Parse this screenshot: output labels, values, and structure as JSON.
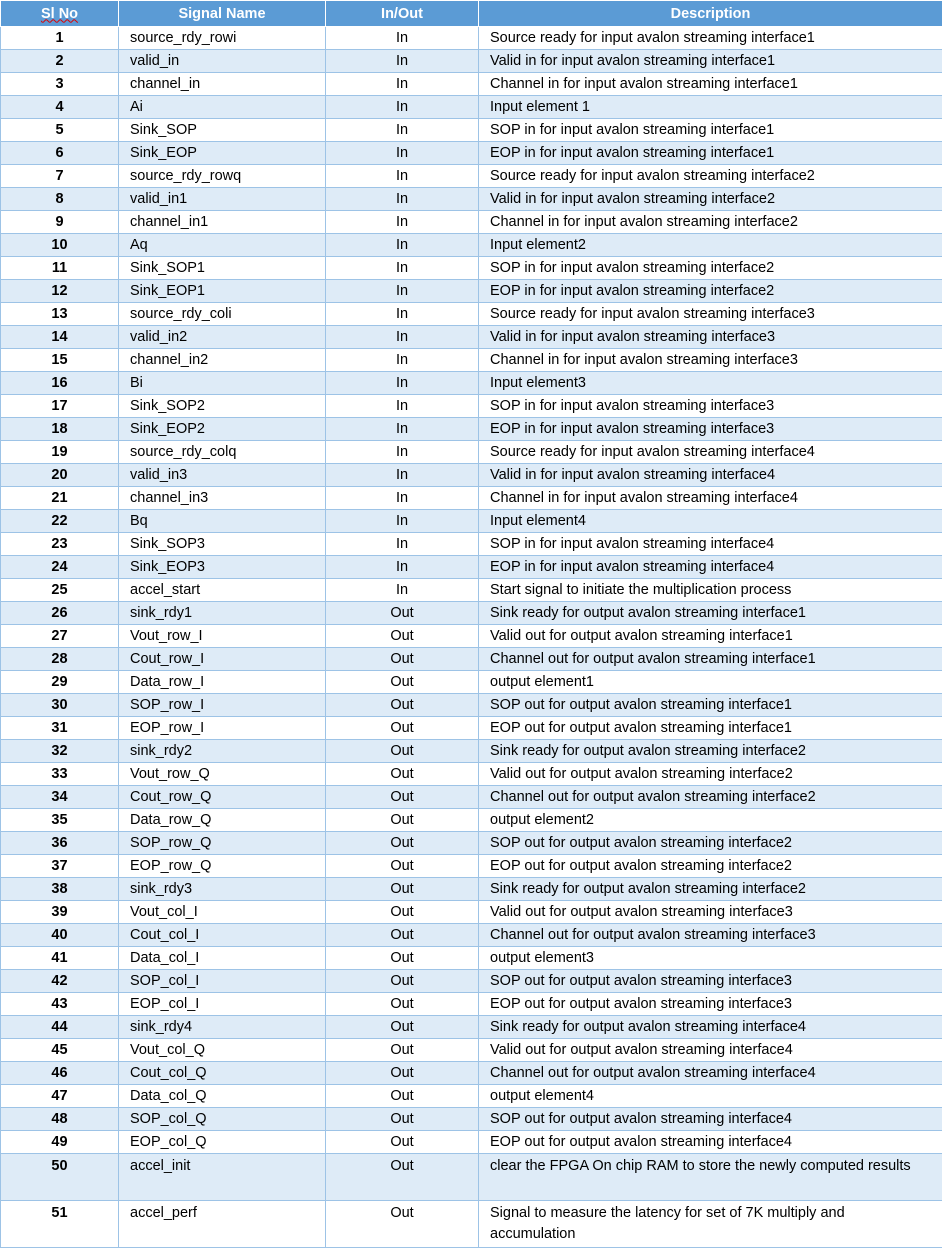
{
  "headers": {
    "sl_no": "Sl No",
    "signal_name": "Signal Name",
    "in_out": "In/Out",
    "description": "Description"
  },
  "rows": [
    {
      "sl": "1",
      "name": "source_rdy_rowi",
      "dir": "In",
      "desc": "Source ready for input avalon streaming interface1"
    },
    {
      "sl": "2",
      "name": "valid_in",
      "dir": "In",
      "desc": "Valid in for input avalon streaming interface1"
    },
    {
      "sl": "3",
      "name": "channel_in",
      "dir": "In",
      "desc": "Channel in for input avalon streaming interface1"
    },
    {
      "sl": "4",
      "name": "Ai",
      "dir": "In",
      "desc": "Input element 1"
    },
    {
      "sl": "5",
      "name": "Sink_SOP",
      "dir": "In",
      "desc": "SOP in for input avalon streaming interface1"
    },
    {
      "sl": "6",
      "name": "Sink_EOP",
      "dir": "In",
      "desc": "EOP in for input avalon streaming interface1"
    },
    {
      "sl": "7",
      "name": "source_rdy_rowq",
      "dir": "In",
      "desc": "Source ready for input avalon streaming interface2"
    },
    {
      "sl": "8",
      "name": "valid_in1",
      "dir": "In",
      "desc": "Valid in for input avalon streaming interface2"
    },
    {
      "sl": "9",
      "name": "channel_in1",
      "dir": "In",
      "desc": "Channel in for input avalon streaming interface2"
    },
    {
      "sl": "10",
      "name": "Aq",
      "dir": "In",
      "desc": "Input element2"
    },
    {
      "sl": "11",
      "name": "Sink_SOP1",
      "dir": "In",
      "desc": "SOP in for input avalon streaming interface2"
    },
    {
      "sl": "12",
      "name": "Sink_EOP1",
      "dir": "In",
      "desc": "EOP in for input avalon streaming interface2"
    },
    {
      "sl": "13",
      "name": "source_rdy_coli",
      "dir": "In",
      "desc": "Source ready for input avalon streaming interface3"
    },
    {
      "sl": "14",
      "name": "valid_in2",
      "dir": "In",
      "desc": "Valid in for input avalon streaming interface3"
    },
    {
      "sl": "15",
      "name": "channel_in2",
      "dir": "In",
      "desc": "Channel in for input avalon streaming interface3"
    },
    {
      "sl": "16",
      "name": "Bi",
      "dir": "In",
      "desc": "Input element3"
    },
    {
      "sl": "17",
      "name": "Sink_SOP2",
      "dir": "In",
      "desc": "SOP in for input avalon streaming interface3"
    },
    {
      "sl": "18",
      "name": "Sink_EOP2",
      "dir": "In",
      "desc": "EOP in for input avalon streaming interface3"
    },
    {
      "sl": "19",
      "name": "source_rdy_colq",
      "dir": "In",
      "desc": "Source ready for input avalon streaming interface4"
    },
    {
      "sl": "20",
      "name": "valid_in3",
      "dir": "In",
      "desc": "Valid in for input avalon streaming interface4"
    },
    {
      "sl": "21",
      "name": "channel_in3",
      "dir": "In",
      "desc": "Channel in for input avalon streaming interface4"
    },
    {
      "sl": "22",
      "name": "Bq",
      "dir": "In",
      "desc": "Input element4"
    },
    {
      "sl": "23",
      "name": "Sink_SOP3",
      "dir": "In",
      "desc": "SOP in for input avalon streaming interface4"
    },
    {
      "sl": "24",
      "name": "Sink_EOP3",
      "dir": "In",
      "desc": "EOP in for input avalon streaming interface4"
    },
    {
      "sl": "25",
      "name": "accel_start",
      "dir": "In",
      "desc": "Start signal to initiate the multiplication process"
    },
    {
      "sl": "26",
      "name": "sink_rdy1",
      "dir": "Out",
      "desc": "Sink ready for output avalon streaming interface1"
    },
    {
      "sl": "27",
      "name": "Vout_row_I",
      "dir": "Out",
      "desc": "Valid out for output avalon streaming interface1"
    },
    {
      "sl": "28",
      "name": "Cout_row_I",
      "dir": "Out",
      "desc": "Channel out for output avalon streaming interface1"
    },
    {
      "sl": "29",
      "name": "Data_row_I",
      "dir": "Out",
      "desc": "output element1"
    },
    {
      "sl": "30",
      "name": "SOP_row_I",
      "dir": "Out",
      "desc": "SOP out for output avalon streaming interface1"
    },
    {
      "sl": "31",
      "name": "EOP_row_I",
      "dir": "Out",
      "desc": "EOP out for output avalon streaming interface1"
    },
    {
      "sl": "32",
      "name": "sink_rdy2",
      "dir": "Out",
      "desc": "Sink ready for output avalon streaming interface2"
    },
    {
      "sl": "33",
      "name": "Vout_row_Q",
      "dir": "Out",
      "desc": "Valid out for output avalon streaming interface2"
    },
    {
      "sl": "34",
      "name": "Cout_row_Q",
      "dir": "Out",
      "desc": "Channel out for output avalon streaming interface2"
    },
    {
      "sl": "35",
      "name": "Data_row_Q",
      "dir": "Out",
      "desc": "output element2"
    },
    {
      "sl": "36",
      "name": "SOP_row_Q",
      "dir": "Out",
      "desc": "SOP out for output avalon streaming interface2"
    },
    {
      "sl": "37",
      "name": "EOP_row_Q",
      "dir": "Out",
      "desc": "EOP out for output avalon streaming interface2"
    },
    {
      "sl": "38",
      "name": "sink_rdy3",
      "dir": "Out",
      "desc": "Sink ready for output avalon streaming interface2"
    },
    {
      "sl": "39",
      "name": "Vout_col_I",
      "dir": "Out",
      "desc": "Valid out for output avalon streaming interface3"
    },
    {
      "sl": "40",
      "name": "Cout_col_I",
      "dir": "Out",
      "desc": "Channel out for output avalon streaming interface3"
    },
    {
      "sl": "41",
      "name": "Data_col_I",
      "dir": "Out",
      "desc": "output element3"
    },
    {
      "sl": "42",
      "name": "SOP_col_I",
      "dir": "Out",
      "desc": "SOP out for output avalon streaming interface3"
    },
    {
      "sl": "43",
      "name": "EOP_col_I",
      "dir": "Out",
      "desc": "EOP out for output avalon streaming interface3"
    },
    {
      "sl": "44",
      "name": "sink_rdy4",
      "dir": "Out",
      "desc": "Sink ready for output avalon streaming interface4"
    },
    {
      "sl": "45",
      "name": "Vout_col_Q",
      "dir": "Out",
      "desc": "Valid out for output avalon streaming interface4"
    },
    {
      "sl": "46",
      "name": "Cout_col_Q",
      "dir": "Out",
      "desc": "Channel out for output avalon streaming interface4"
    },
    {
      "sl": "47",
      "name": "Data_col_Q",
      "dir": "Out",
      "desc": "output element4"
    },
    {
      "sl": "48",
      "name": "SOP_col_Q",
      "dir": "Out",
      "desc": "SOP out for output avalon streaming interface4"
    },
    {
      "sl": "49",
      "name": "EOP_col_Q",
      "dir": "Out",
      "desc": "EOP out for output avalon streaming interface4"
    },
    {
      "sl": "50",
      "name": "accel_init",
      "dir": "Out",
      "desc": "clear the FPGA On chip RAM to store the newly computed results"
    },
    {
      "sl": "51",
      "name": "accel_perf",
      "dir": "Out",
      "desc": "Signal to measure the latency for set of 7K multiply and accumulation"
    }
  ],
  "colors": {
    "header_bg": "#5b9bd5",
    "band_bg": "#deebf7",
    "border": "#9dc3e6"
  }
}
